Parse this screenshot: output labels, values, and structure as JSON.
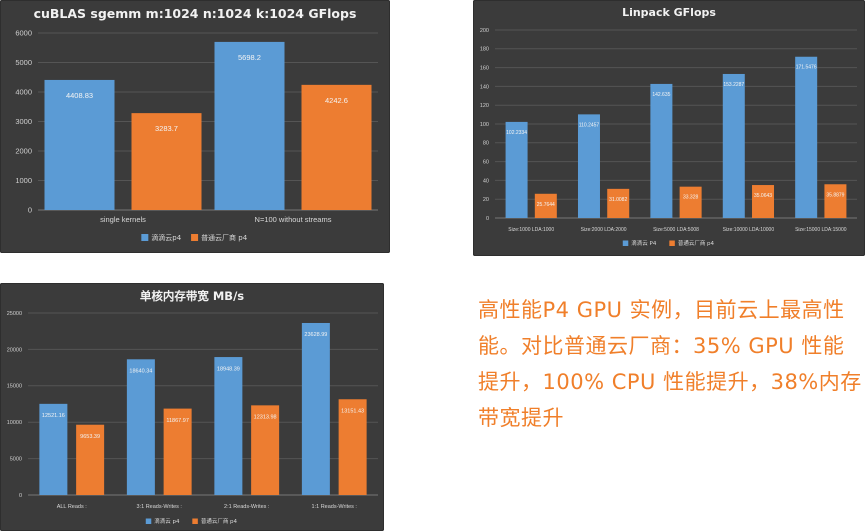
{
  "summary_text": "高性能P4 GPU 实例，目前云上最高性能。对比普通云厂商：35% GPU 性能提升，100% CPU 性能提升，38%内存带宽提升",
  "colors": {
    "series_a": "#5b9bd5",
    "series_b": "#ed7d31",
    "panel_bg": "#3b3b3b"
  },
  "chart_data": [
    {
      "type": "bar",
      "title": "cuBLAS sgemm m:1024 n:1024 k:1024 GFlops",
      "categories": [
        "single kernels",
        "N=100 without streams"
      ],
      "ylim": [
        0,
        6000
      ],
      "yticks": [
        0,
        1000,
        2000,
        3000,
        4000,
        5000,
        6000
      ],
      "series": [
        {
          "name": "滴滴云p4",
          "values": [
            4408.83,
            5698.2
          ],
          "labels": [
            "4408.83",
            "5698.2"
          ]
        },
        {
          "name": "普通云厂商 p4",
          "values": [
            3283.7,
            4242.6
          ],
          "labels": [
            "3283.7",
            "4242.6"
          ]
        }
      ],
      "grid": true,
      "legend": "bottom"
    },
    {
      "type": "bar",
      "title": "Linpack GFlops",
      "categories": [
        "Size:1000 LDA:1000",
        "Size:2000 LDA:2000",
        "Size:5000 LDA:5008",
        "Size:10000 LDA:10000",
        "Size:15000 LDA:15000"
      ],
      "ylim": [
        0,
        200
      ],
      "yticks": [
        0,
        20,
        40,
        60,
        80,
        100,
        120,
        140,
        160,
        180,
        200
      ],
      "series": [
        {
          "name": "滴滴云 P4",
          "values": [
            102.2334,
            110.2457,
            142.635,
            153.2287,
            171.5476
          ],
          "labels": [
            "102.2334",
            "110.2457",
            "142.635",
            "153.2287",
            "171.5476"
          ]
        },
        {
          "name": "普通云厂商 p4",
          "values": [
            25.7644,
            31.0082,
            33.328,
            35.0643,
            35.8879
          ],
          "labels": [
            "25.7644",
            "31.0082",
            "33.328",
            "35.0643",
            "35.8879"
          ]
        }
      ],
      "grid": true,
      "legend": "bottom"
    },
    {
      "type": "bar",
      "title": "单核内存带宽 MB/s",
      "categories": [
        "ALL Reads        :",
        "3:1 Reads-Writes :",
        "2:1 Reads-Writes :",
        "1:1 Reads-Writes :"
      ],
      "ylim": [
        0,
        25000
      ],
      "yticks": [
        0,
        5000,
        10000,
        15000,
        20000,
        25000
      ],
      "series": [
        {
          "name": "滴滴云 p4",
          "values": [
            12521.16,
            18640.34,
            18948.39,
            23628.99
          ],
          "labels": [
            "12521.16",
            "18640.34",
            "18948.39",
            "23628.99"
          ]
        },
        {
          "name": "普通云厂商 p4",
          "values": [
            9653.39,
            11867.97,
            12313.98,
            13151.43
          ],
          "labels": [
            "9653.39",
            "11867.97",
            "12313.98",
            "13151.43"
          ]
        }
      ],
      "grid": true,
      "legend": "bottom"
    }
  ]
}
